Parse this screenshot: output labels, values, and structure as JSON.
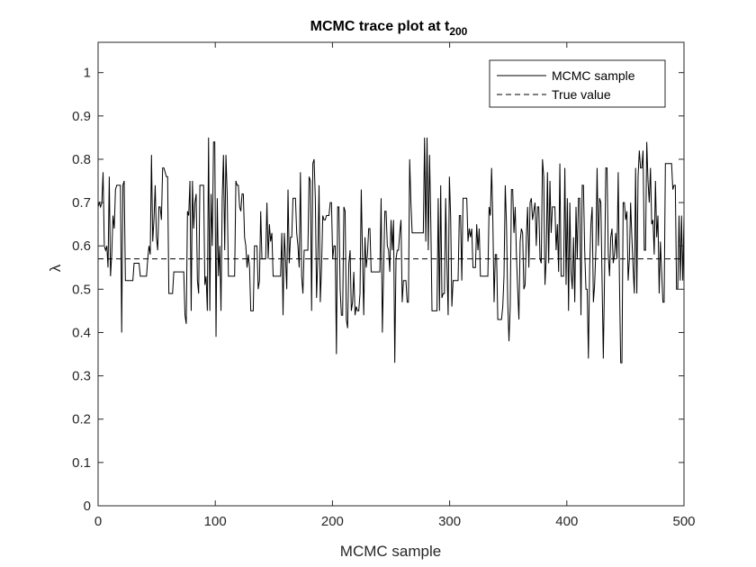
{
  "chart_data": {
    "type": "line",
    "title": "MCMC trace plot at t",
    "title_subscript": "200",
    "xlabel": "MCMC sample",
    "ylabel": "λ",
    "xlim": [
      0,
      500
    ],
    "ylim": [
      0,
      1.07
    ],
    "xticks": [
      0,
      100,
      200,
      300,
      400,
      500
    ],
    "yticks": [
      0,
      0.1,
      0.2,
      0.3,
      0.4,
      0.5,
      0.6,
      0.7,
      0.8,
      0.9,
      1
    ],
    "xtick_labels": [
      "0",
      "100",
      "200",
      "300",
      "400",
      "500"
    ],
    "ytick_labels": [
      "0",
      "0.1",
      "0.2",
      "0.3",
      "0.4",
      "0.5",
      "0.6",
      "0.7",
      "0.8",
      "0.9",
      "1"
    ],
    "grid": false,
    "legend_position": "top-right",
    "series": [
      {
        "name": "MCMC sample",
        "style": "solid",
        "color": "#000000",
        "values": [
          0.69,
          0.7,
          0.69,
          0.7,
          0.77,
          0.6,
          0.59,
          0.6,
          0.55,
          0.76,
          0.53,
          0.58,
          0.67,
          0.64,
          0.73,
          0.74,
          0.74,
          0.74,
          0.74,
          0.4,
          0.74,
          0.75,
          0.52,
          0.52,
          0.52,
          0.52,
          0.52,
          0.52,
          0.52,
          0.56,
          0.56,
          0.56,
          0.56,
          0.56,
          0.53,
          0.53,
          0.53,
          0.53,
          0.53,
          0.53,
          0.57,
          0.6,
          0.58,
          0.81,
          0.61,
          0.66,
          0.74,
          0.62,
          0.59,
          0.69,
          0.69,
          0.66,
          0.78,
          0.78,
          0.77,
          0.76,
          0.76,
          0.49,
          0.49,
          0.49,
          0.49,
          0.54,
          0.54,
          0.54,
          0.54,
          0.54,
          0.54,
          0.54,
          0.54,
          0.54,
          0.44,
          0.42,
          0.68,
          0.67,
          0.75,
          0.45,
          0.75,
          0.64,
          0.7,
          0.72,
          0.52,
          0.49,
          0.74,
          0.74,
          0.74,
          0.74,
          0.51,
          0.53,
          0.45,
          0.85,
          0.45,
          0.72,
          0.6,
          0.84,
          0.84,
          0.39,
          0.71,
          0.53,
          0.6,
          0.45,
          0.71,
          0.81,
          0.59,
          0.81,
          0.72,
          0.53,
          0.53,
          0.53,
          0.53,
          0.53,
          0.53,
          0.75,
          0.74,
          0.74,
          0.69,
          0.68,
          0.72,
          0.72,
          0.62,
          0.6,
          0.55,
          0.58,
          0.55,
          0.45,
          0.45,
          0.45,
          0.6,
          0.6,
          0.6,
          0.5,
          0.52,
          0.68,
          0.57,
          0.57,
          0.57,
          0.57,
          0.7,
          0.57,
          0.65,
          0.61,
          0.63,
          0.53,
          0.53,
          0.53,
          0.53,
          0.53,
          0.53,
          0.53,
          0.63,
          0.44,
          0.63,
          0.57,
          0.5,
          0.73,
          0.56,
          0.62,
          0.62,
          0.71,
          0.71,
          0.71,
          0.63,
          0.6,
          0.55,
          0.77,
          0.53,
          0.49,
          0.59,
          0.59,
          0.59,
          0.59,
          0.76,
          0.75,
          0.45,
          0.79,
          0.8,
          0.71,
          0.48,
          0.57,
          0.74,
          0.47,
          0.55,
          0.67,
          0.66,
          0.66,
          0.67,
          0.67,
          0.67,
          0.7,
          0.7,
          0.57,
          0.6,
          0.6,
          0.35,
          0.69,
          0.69,
          0.5,
          0.44,
          0.44,
          0.69,
          0.68,
          0.43,
          0.41,
          0.56,
          0.59,
          0.45,
          0.47,
          0.54,
          0.44,
          0.46,
          0.45,
          0.45,
          0.49,
          0.73,
          0.58,
          0.44,
          0.62,
          0.55,
          0.58,
          0.64,
          0.64,
          0.54,
          0.54,
          0.54,
          0.54,
          0.54,
          0.54,
          0.54,
          0.54,
          0.71,
          0.4,
          0.54,
          0.68,
          0.68,
          0.6,
          0.59,
          0.54,
          0.66,
          0.59,
          0.66,
          0.33,
          0.57,
          0.59,
          0.59,
          0.63,
          0.66,
          0.47,
          0.52,
          0.52,
          0.52,
          0.47,
          0.47,
          0.8,
          0.7,
          0.63,
          0.63,
          0.63,
          0.63,
          0.63,
          0.63,
          0.63,
          0.63,
          0.63,
          0.63,
          0.85,
          0.61,
          0.85,
          0.59,
          0.81,
          0.66,
          0.45,
          0.45,
          0.45,
          0.45,
          0.45,
          0.71,
          0.45,
          0.74,
          0.48,
          0.49,
          0.49,
          0.71,
          0.56,
          0.44,
          0.76,
          0.67,
          0.46,
          0.52,
          0.52,
          0.52,
          0.52,
          0.52,
          0.67,
          0.67,
          0.52,
          0.71,
          0.71,
          0.71,
          0.71,
          0.61,
          0.64,
          0.62,
          0.64,
          0.55,
          0.55,
          0.55,
          0.65,
          0.59,
          0.64,
          0.53,
          0.53,
          0.53,
          0.53,
          0.53,
          0.53,
          0.53,
          0.69,
          0.67,
          0.78,
          0.66,
          0.47,
          0.58,
          0.58,
          0.43,
          0.43,
          0.43,
          0.43,
          0.46,
          0.53,
          0.74,
          0.65,
          0.47,
          0.38,
          0.46,
          0.73,
          0.73,
          0.63,
          0.69,
          0.58,
          0.5,
          0.43,
          0.61,
          0.64,
          0.63,
          0.5,
          0.51,
          0.62,
          0.69,
          0.55,
          0.7,
          0.71,
          0.66,
          0.68,
          0.7,
          0.6,
          0.69,
          0.69,
          0.57,
          0.56,
          0.8,
          0.76,
          0.51,
          0.57,
          0.77,
          0.56,
          0.75,
          0.63,
          0.69,
          0.69,
          0.69,
          0.59,
          0.65,
          0.54,
          0.79,
          0.53,
          0.53,
          0.53,
          0.78,
          0.51,
          0.71,
          0.45,
          0.7,
          0.54,
          0.5,
          0.62,
          0.47,
          0.69,
          0.57,
          0.71,
          0.71,
          0.44,
          0.74,
          0.74,
          0.59,
          0.5,
          0.5,
          0.34,
          0.55,
          0.65,
          0.69,
          0.47,
          0.51,
          0.59,
          0.78,
          0.6,
          0.71,
          0.7,
          0.52,
          0.34,
          0.53,
          0.78,
          0.78,
          0.58,
          0.53,
          0.62,
          0.64,
          0.56,
          0.58,
          0.63,
          0.57,
          0.77,
          0.52,
          0.33,
          0.33,
          0.7,
          0.7,
          0.66,
          0.68,
          0.52,
          0.57,
          0.7,
          0.62,
          0.55,
          0.49,
          0.78,
          0.49,
          0.76,
          0.82,
          0.78,
          0.78,
          0.82,
          0.59,
          0.59,
          0.84,
          0.75,
          0.7,
          0.78,
          0.65,
          0.66,
          0.58,
          0.75,
          0.62,
          0.67,
          0.49,
          0.61,
          0.54,
          0.47,
          0.47,
          0.79,
          0.79,
          0.79,
          0.79,
          0.79,
          0.79,
          0.73,
          0.74,
          0.74,
          0.5,
          0.5,
          0.67,
          0.52,
          0.67,
          0.52,
          0.67
        ]
      },
      {
        "name": "True value",
        "style": "dashed",
        "color": "#000000",
        "constant": 0.57
      }
    ]
  }
}
